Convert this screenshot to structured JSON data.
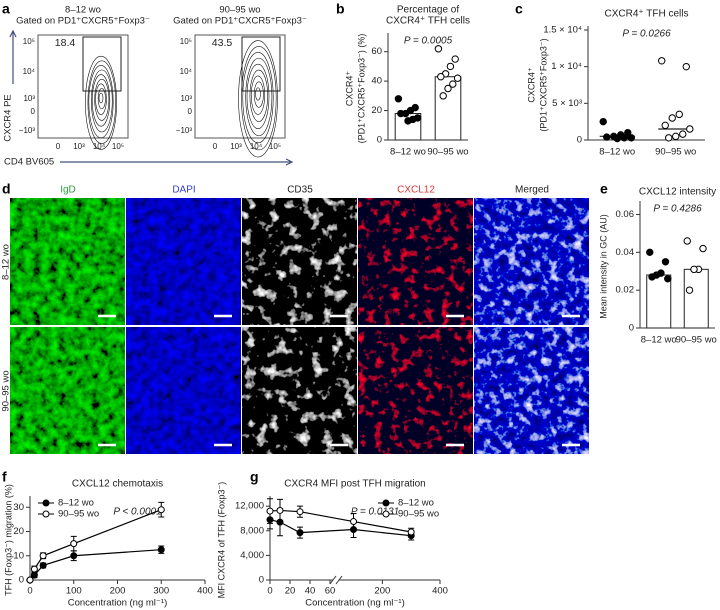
{
  "panels": {
    "a": {
      "label": "a",
      "plots": [
        {
          "title": "8–12 wo",
          "subtitle": "Gated on PD1⁺CXCR5⁺Foxp3⁻",
          "gate_value": 18.4
        },
        {
          "title": "90–95 wo",
          "subtitle": "Gated on PD1⁺CXCR5⁺Foxp3⁻",
          "gate_value": 43.5
        }
      ],
      "ylabel": "CXCR4 PE",
      "xlabel": "CD4 BV605",
      "xticks": [
        "0",
        "10³",
        "10⁴",
        "10⁵"
      ],
      "yticks": [
        "10⁵",
        "10⁴",
        "10³",
        "0",
        "−10³"
      ]
    },
    "d": {
      "label": "d",
      "channels": [
        "IgD",
        "DAPI",
        "CD35",
        "CXCL12",
        "Merged"
      ],
      "channel_colors": [
        "#2e9e3e",
        "#3440c8",
        "#222222",
        "#d23a3a",
        "#222222"
      ],
      "rows": [
        "8–12 wo",
        "90–95 wo"
      ]
    }
  },
  "chart_data": [
    {
      "type": "bar",
      "label": "b",
      "title": [
        "Percentage of",
        "CXCR4⁺ TFH cells"
      ],
      "ylabel": [
        "CXCR4⁺",
        "(PD1⁺CXCR5⁺Foxp3⁻) (%)"
      ],
      "annotation": "P = 0.0005",
      "categories": [
        "8–12 wo",
        "90–95 wo"
      ],
      "values": [
        18,
        43
      ],
      "points": [
        [
          28,
          22,
          20,
          18,
          18,
          15,
          14,
          13
        ],
        [
          62,
          55,
          50,
          45,
          43,
          42,
          38,
          35,
          30
        ]
      ],
      "point_fill": [
        "#000000",
        "#ffffff"
      ],
      "color": "#ffffff",
      "ylim": [
        0,
        70
      ],
      "yticks": [
        0,
        20,
        40,
        60
      ]
    },
    {
      "type": "dot",
      "label": "c",
      "title": [
        "CXCR4⁺ TFH cells"
      ],
      "ylabel": [
        "CXCR4⁺",
        "(PD1⁺CXCR5⁺Foxp3⁻)"
      ],
      "annotation": "P = 0.0266",
      "categories": [
        "8–12 wo",
        "90–95 wo"
      ],
      "values": [
        500,
        1500
      ],
      "points": [
        [
          2500,
          1000,
          700,
          500,
          400,
          300,
          300,
          200
        ],
        [
          10800,
          10000,
          3500,
          3000,
          2000,
          1500,
          800,
          500,
          300
        ]
      ],
      "point_fill": [
        "#000000",
        "#ffffff"
      ],
      "ylim": [
        0,
        15000
      ],
      "yticks": [
        0,
        {
          "value": 5000,
          "label": "5 × 10³"
        },
        {
          "value": 10000,
          "label": "1 × 10⁴"
        },
        {
          "value": 15000,
          "label": "1.5 × 10⁴"
        }
      ]
    },
    {
      "type": "bar",
      "label": "e",
      "title": [
        "CXCL12 intensity"
      ],
      "ylabel": [
        "Mean intensity in GC (AU)"
      ],
      "annotation": "P = 0.4286",
      "categories": [
        "8–12 wo",
        "90–95 wo"
      ],
      "values": [
        0.028,
        0.031
      ],
      "points": [
        [
          0.04,
          0.035,
          0.029,
          0.028,
          0.027,
          0.026
        ],
        [
          0.046,
          0.042,
          0.031,
          0.031,
          0.02
        ]
      ],
      "point_fill": [
        "#000000",
        "#ffffff"
      ],
      "color": "#ffffff",
      "ylim": [
        0,
        0.065
      ],
      "yticks": [
        0,
        0.02,
        0.04,
        0.06
      ]
    },
    {
      "type": "line",
      "label": "f",
      "title": [
        "CXCL12 chemotaxis"
      ],
      "ylabel": [
        "TFH (Foxp3⁻) migration (%)"
      ],
      "xlabel": "Concentration (ng ml⁻¹)",
      "annotation": "P < 0.0001",
      "legend": "upper left",
      "x": [
        0,
        10,
        30,
        100,
        300
      ],
      "series": [
        {
          "name": "8–12 wo",
          "color": "#000000",
          "fill": "#000000",
          "values": [
            0,
            2,
            6,
            10,
            12.5
          ],
          "errors": [
            0.3,
            1,
            1,
            2,
            1.5
          ]
        },
        {
          "name": "90–95 wo",
          "color": "#000000",
          "fill": "#ffffff",
          "values": [
            0,
            4.5,
            10,
            15,
            29
          ],
          "errors": [
            0.3,
            1.2,
            1.2,
            3,
            3
          ]
        }
      ],
      "xlim": [
        0,
        400
      ],
      "xticks": [
        0,
        100,
        200,
        300,
        400
      ],
      "ylim": [
        0,
        33
      ],
      "yticks": [
        0,
        10,
        20,
        30
      ]
    },
    {
      "type": "line",
      "label": "g",
      "title": [
        "CXCR4 MFI post TFH migration"
      ],
      "ylabel": [
        "MFI CXCR4 of TFH (Foxp3⁻)"
      ],
      "xlabel": "Concentration (ng ml⁻¹)",
      "annotation": "P = 0.0131",
      "legend": "upper right",
      "x": [
        0,
        10,
        30,
        100,
        300
      ],
      "series": [
        {
          "name": "8–12 wo",
          "color": "#000000",
          "fill": "#000000",
          "values": [
            9800,
            9400,
            7700,
            8200,
            7200
          ],
          "errors": [
            1500,
            2200,
            900,
            1300,
            700
          ]
        },
        {
          "name": "90–95 wo",
          "color": "#000000",
          "fill": "#ffffff",
          "values": [
            11200,
            11300,
            11100,
            9500,
            7800
          ],
          "errors": [
            2000,
            1800,
            900,
            1300,
            600
          ]
        }
      ],
      "xbreak": [
        [
          0,
          60
        ],
        [
          60,
          400
        ]
      ],
      "xticks": [
        0,
        20,
        40,
        60,
        200,
        400
      ],
      "ylim": [
        0,
        13000
      ],
      "yticks": [
        0,
        {
          "value": 4000,
          "label": "4,000"
        },
        {
          "value": 8000,
          "label": "8,000"
        },
        {
          "value": 12000,
          "label": "12,000"
        }
      ]
    }
  ]
}
